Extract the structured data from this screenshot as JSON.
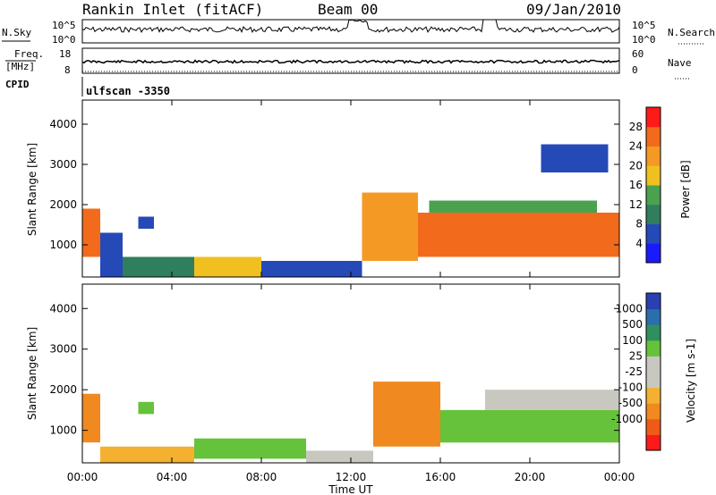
{
  "header": {
    "title": "Rankin Inlet (fitACF)",
    "beam": "Beam 00",
    "date": "09/Jan/2010"
  },
  "side_labels": {
    "nsky": "N.Sky",
    "freq_top": "Freq.",
    "freq_unit": "[MHz]",
    "cpid": "CPID",
    "nsearch": "N.Search",
    "nave": "Nave"
  },
  "cpid_text": "ulfscan -3350",
  "colors": {
    "power": [
      "#1a1aff",
      "#2649b8",
      "#2f7f5f",
      "#4aa24f",
      "#f0c020",
      "#f49a24",
      "#f26b1c",
      "#ff1a1a"
    ],
    "velocity": [
      "#ff1a1a",
      "#f05a18",
      "#f08a20",
      "#f4b030",
      "#c8c8c0",
      "#c8c8c0",
      "#66c23a",
      "#2f8f5f",
      "#2a6faa",
      "#2a3fb0"
    ]
  },
  "chart_data": [
    {
      "type": "line",
      "title": "N.Sky / N.Search",
      "left_ticks": [
        "10^5",
        "10^0"
      ],
      "right_ticks": [
        "10^5",
        "10^0"
      ],
      "note": "noise level time series (log scale)"
    },
    {
      "type": "line",
      "title": "Freq. / Nave",
      "left_ticks": [
        18,
        8
      ],
      "right_ticks": [
        60,
        0
      ]
    },
    {
      "type": "heatmap",
      "quantity": "Power",
      "colorbar_label": "Power [dB]",
      "colorbar_ticks": [
        28,
        24,
        20,
        16,
        12,
        8,
        4
      ],
      "xlabel": "",
      "ylabel": "Slant Range [km]",
      "xlim": [
        0,
        24
      ],
      "ylim": [
        200,
        4600
      ],
      "yticks": [
        1000,
        2000,
        3000,
        4000
      ],
      "regions": [
        {
          "x": [
            0.0,
            0.8
          ],
          "y": [
            700,
            1900
          ],
          "value": 24
        },
        {
          "x": [
            0.8,
            1.8
          ],
          "y": [
            200,
            1300
          ],
          "value": 6
        },
        {
          "x": [
            1.8,
            5.0
          ],
          "y": [
            200,
            700
          ],
          "value": 8
        },
        {
          "x": [
            5.0,
            8.0
          ],
          "y": [
            200,
            700
          ],
          "value": 16
        },
        {
          "x": [
            8.0,
            12.5
          ],
          "y": [
            200,
            600
          ],
          "value": 6
        },
        {
          "x": [
            12.5,
            15.0
          ],
          "y": [
            600,
            2300
          ],
          "value": 20
        },
        {
          "x": [
            15.0,
            24.0
          ],
          "y": [
            700,
            1800
          ],
          "value": 26
        },
        {
          "x": [
            15.5,
            23.0
          ],
          "y": [
            1800,
            2100
          ],
          "value": 12
        },
        {
          "x": [
            20.5,
            23.5
          ],
          "y": [
            2800,
            3500
          ],
          "value": 6
        },
        {
          "x": [
            2.5,
            3.2
          ],
          "y": [
            1400,
            1700
          ],
          "value": 6
        }
      ]
    },
    {
      "type": "heatmap",
      "quantity": "Velocity",
      "colorbar_label": "Velocity [m s-1]",
      "colorbar_ticks": [
        1000,
        500,
        100,
        25,
        -25,
        -100,
        -500,
        -1000
      ],
      "xlabel": "Time UT",
      "ylabel": "Slant Range [km]",
      "xticks": [
        "00:00",
        "04:00",
        "08:00",
        "12:00",
        "16:00",
        "20:00",
        "00:00"
      ],
      "xlim": [
        0,
        24
      ],
      "ylim": [
        200,
        4600
      ],
      "yticks": [
        1000,
        2000,
        3000,
        4000
      ],
      "regions": [
        {
          "x": [
            0.0,
            0.8
          ],
          "y": [
            700,
            1900
          ],
          "value": -400
        },
        {
          "x": [
            0.8,
            5.0
          ],
          "y": [
            200,
            600
          ],
          "value": -80
        },
        {
          "x": [
            5.0,
            10.0
          ],
          "y": [
            300,
            800
          ],
          "value": 150
        },
        {
          "x": [
            10.0,
            13.0
          ],
          "y": [
            200,
            500
          ],
          "value": 20
        },
        {
          "x": [
            13.0,
            16.0
          ],
          "y": [
            600,
            2200
          ],
          "value": -300
        },
        {
          "x": [
            16.0,
            24.0
          ],
          "y": [
            700,
            1500
          ],
          "value": 200
        },
        {
          "x": [
            18.0,
            24.0
          ],
          "y": [
            1500,
            2000
          ],
          "value": 0
        },
        {
          "x": [
            2.5,
            3.2
          ],
          "y": [
            1400,
            1700
          ],
          "value": 400
        }
      ]
    }
  ]
}
